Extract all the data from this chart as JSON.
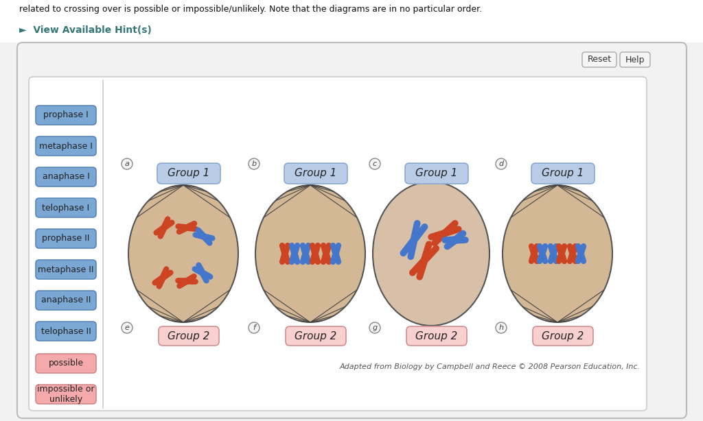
{
  "bg_outer": "#ececec",
  "header_text": "related to crossing over is possible or impossible/unlikely. Note that the diagrams are in no particular order.",
  "hint_text": "►  View Available Hint(s)",
  "hint_color": "#337777",
  "blue_btn_color": "#7ba7d4",
  "blue_btn_border": "#5a87b8",
  "pink_btn_color": "#f4aaaa",
  "pink_btn_border": "#d08888",
  "btn_labels_blue": [
    "prophase I",
    "metaphase I",
    "anaphase I",
    "telophase I",
    "prophase II",
    "metaphase II",
    "anaphase II",
    "telophase II"
  ],
  "btn_labels_pink": [
    "possible",
    "impossible or\nunlikely"
  ],
  "reset_label": "Reset",
  "help_label": "Help",
  "cell_bg": "#d4b896",
  "cell_bg_c": "#d8bfa8",
  "spindle_color": "#444444",
  "red_chr": "#cc4422",
  "blue_chr": "#4477cc",
  "group1_box_color": "#b8cce8",
  "group1_box_border": "#8aaad0",
  "group2_box_color": "#f8d0d0",
  "group2_box_border": "#d09090",
  "group1_labels": [
    "Group 1",
    "Group 1",
    "Group 1",
    "Group 1"
  ],
  "group2_labels": [
    "Group 2",
    "Group 2",
    "Group 2",
    "Group 2"
  ],
  "cell_letters": [
    "a",
    "b",
    "c",
    "d",
    "e",
    "f",
    "g",
    "h"
  ],
  "caption": "Adapted from Biology by Campbell and Reece © 2008 Pearson Education, Inc.",
  "outer_panel_bg": "#f2f2f2",
  "outer_panel_border": "#bbbbbb",
  "inner_panel_bg": "#ffffff",
  "inner_panel_border": "#cccccc"
}
